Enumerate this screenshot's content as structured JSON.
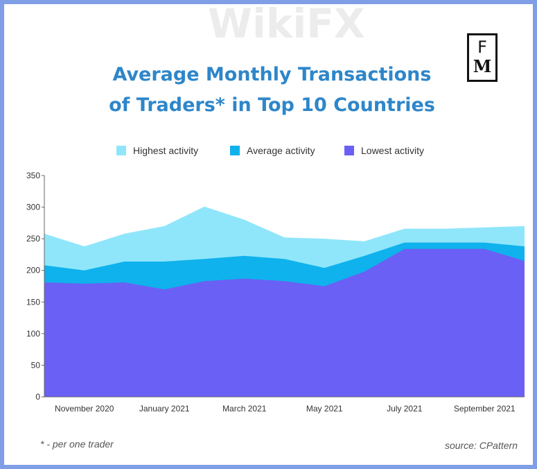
{
  "title_line1": "Average Monthly Transactions",
  "title_line2": "of Traders* in Top 10 Countries",
  "logo_top": "F",
  "logo_bottom": "M",
  "footnote": "* - per one trader",
  "source": "source: CPattern",
  "watermark": "WikiFX",
  "chart_data": {
    "type": "area",
    "x": [
      "Oct 2020",
      "Nov 2020",
      "Dec 2020",
      "Jan 2021",
      "Feb 2021",
      "Mar 2021",
      "Apr 2021",
      "May 2021",
      "Jun 2021",
      "Jul 2021",
      "Aug 2021",
      "Sep 2021",
      "Oct 2021"
    ],
    "xtick_labels": [
      "November 2020",
      "January 2021",
      "March 2021",
      "May 2021",
      "July 2021",
      "September 2021"
    ],
    "yticks": [
      0,
      50,
      100,
      150,
      200,
      250,
      300,
      350
    ],
    "ylim": [
      0,
      350
    ],
    "grid": false,
    "legend_position": "top",
    "series": [
      {
        "name": "Highest activity",
        "color": "#8fe6fb",
        "values": [
          258,
          238,
          258,
          270,
          301,
          280,
          252,
          250,
          246,
          266,
          266,
          268,
          270
        ]
      },
      {
        "name": "Average activity",
        "color": "#0fb2ec",
        "values": [
          208,
          200,
          214,
          214,
          218,
          223,
          218,
          204,
          223,
          244,
          244,
          244,
          238
        ]
      },
      {
        "name": "Lowest activity",
        "color": "#6a60f5",
        "values": [
          181,
          179,
          181,
          170,
          183,
          187,
          183,
          175,
          198,
          234,
          234,
          234,
          215
        ]
      }
    ]
  }
}
